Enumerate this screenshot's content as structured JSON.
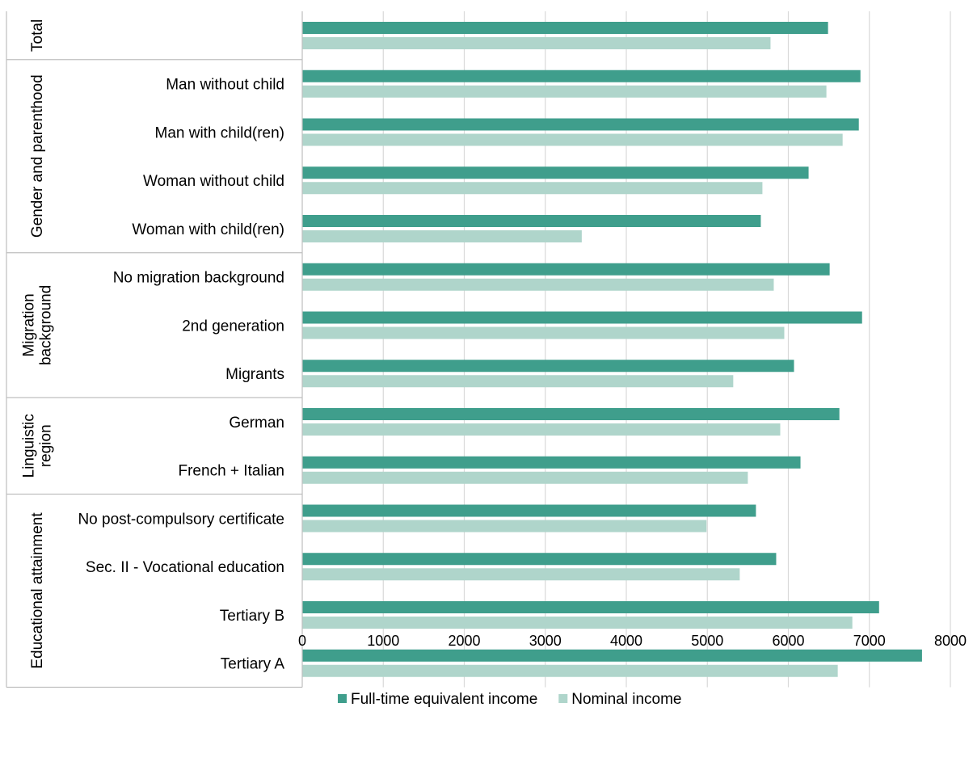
{
  "chart_data": {
    "type": "bar",
    "orientation": "horizontal",
    "categories": [
      "",
      "Man without child",
      "Man with child(ren)",
      "Woman without child",
      "Woman with child(ren)",
      "No migration background",
      "2nd generation",
      "Migrants",
      "German",
      "French + Italian",
      "No post-compulsory certificate",
      "Sec. II - Vocational education",
      "Tertiary B",
      "Tertiary A"
    ],
    "groups": [
      {
        "label": "Total",
        "lines": [
          "Total"
        ],
        "category_count": 1
      },
      {
        "label": "Gender and parenthood",
        "lines": [
          "Gender and parenthood"
        ],
        "category_count": 4
      },
      {
        "label": "Migration background",
        "lines": [
          "Migration",
          "background"
        ],
        "category_count": 3
      },
      {
        "label": "Linguistic region",
        "lines": [
          "Linguistic",
          "region"
        ],
        "category_count": 2
      },
      {
        "label": "Educational attainment",
        "lines": [
          "Educational attainment"
        ],
        "category_count": 4
      }
    ],
    "series": [
      {
        "name": "Full-time equivalent income",
        "color": "#3f9e8c",
        "values": [
          6490,
          6890,
          6870,
          6250,
          5660,
          6510,
          6910,
          6070,
          6630,
          6150,
          5600,
          5850,
          7120,
          7650
        ]
      },
      {
        "name": "Nominal income",
        "color": "#afd5cb",
        "values": [
          5780,
          6470,
          6670,
          5680,
          3450,
          5820,
          5950,
          5320,
          5900,
          5500,
          4990,
          5400,
          6790,
          6610
        ]
      }
    ],
    "xlim": [
      0,
      8000
    ],
    "xticks": [
      0,
      1000,
      2000,
      3000,
      4000,
      5000,
      6000,
      7000,
      8000
    ],
    "grid": true,
    "legend_position": "bottom",
    "title": "",
    "xlabel": "",
    "ylabel": ""
  }
}
